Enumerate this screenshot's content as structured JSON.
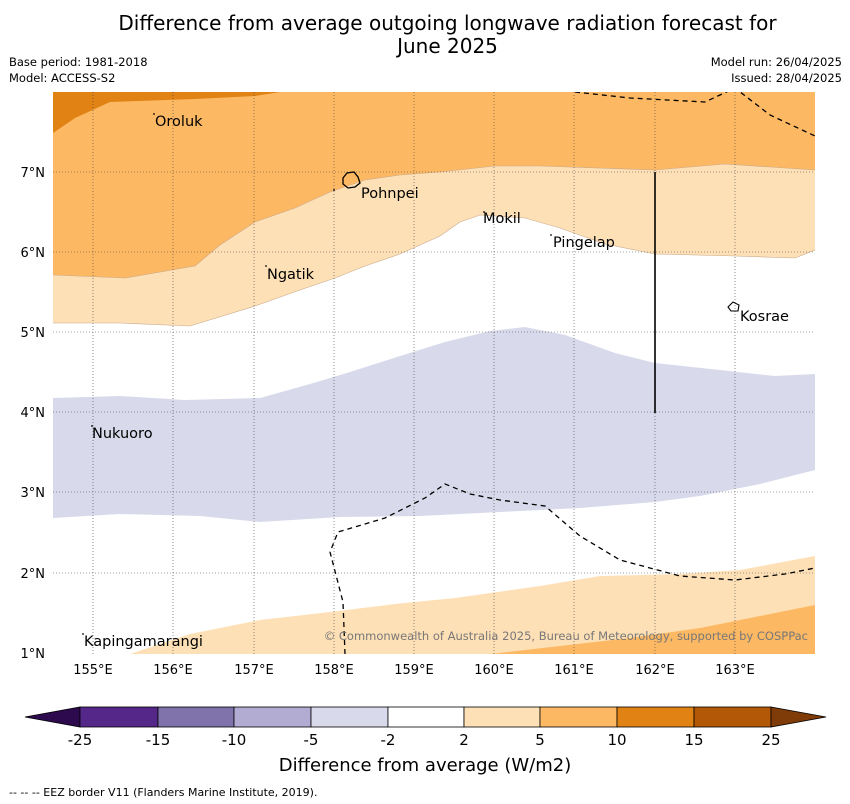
{
  "header": {
    "title_line1": "Difference from average outgoing longwave radiation forecast for",
    "title_line2": "June 2025",
    "base_period": "Base period: 1981-2018",
    "model": "Model: ACCESS-S2",
    "model_run": "Model run: 26/04/2025",
    "issued": "Issued: 28/04/2025"
  },
  "map": {
    "lat_labels": [
      "7°N",
      "6°N",
      "5°N",
      "4°N",
      "3°N",
      "2°N",
      "1°N"
    ],
    "lon_labels": [
      "155°E",
      "156°E",
      "157°E",
      "158°E",
      "159°E",
      "160°E",
      "161°E",
      "162°E",
      "163°E"
    ],
    "places": [
      "Oroluk",
      "Pohnpei",
      "Mokil",
      "Pingelap",
      "Ngatik",
      "Kosrae",
      "Nukuoro",
      "Kapingamarangi"
    ],
    "copyright": "© Commonwealth of Australia 2025, Bureau of Meteorology, supported by COSPPac"
  },
  "colorbar": {
    "ticks": [
      "-25",
      "-15",
      "-10",
      "-5",
      "-2",
      "2",
      "5",
      "10",
      "15",
      "25"
    ],
    "colors": [
      "#2d0a4e",
      "#542788",
      "#8073ac",
      "#b2abd2",
      "#d8daeb",
      "#ffffff",
      "#fee0b6",
      "#fdb863",
      "#e08214",
      "#b35806",
      "#7f3b08"
    ],
    "title": "Difference from average (W/m2)"
  },
  "footnote": "--  --  -- EEZ border V11 (Flanders Marine Institute, 2019)."
}
